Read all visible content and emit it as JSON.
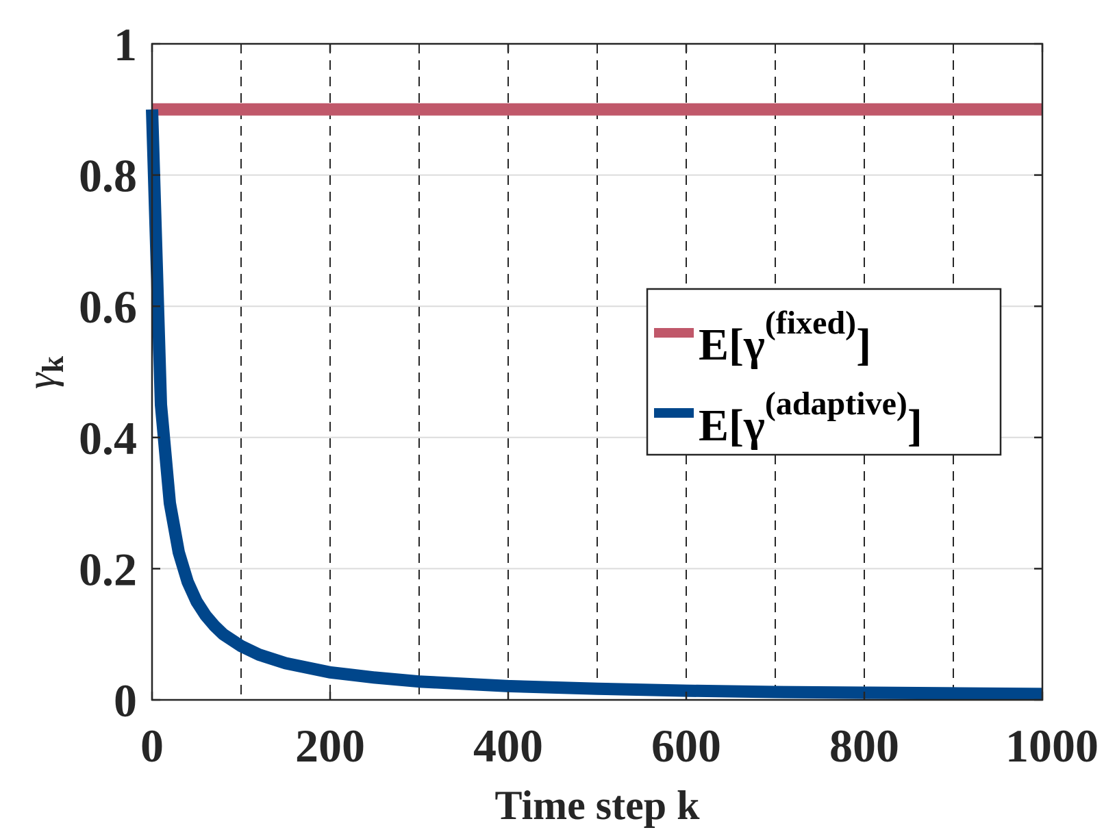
{
  "chart_data": {
    "type": "line",
    "xlabel": "Time step k",
    "ylabel": "γ",
    "ylabel_sub": "k",
    "xlim": [
      0,
      1000
    ],
    "ylim": [
      0,
      1
    ],
    "x_ticks": [
      0,
      200,
      400,
      600,
      800,
      1000
    ],
    "x_tick_labels": [
      "0",
      "200",
      "400",
      "600",
      "800",
      "1000"
    ],
    "y_ticks": [
      0,
      0.2,
      0.4,
      0.6,
      0.8,
      1
    ],
    "y_tick_labels": [
      "0",
      "0.2",
      "0.4",
      "0.6",
      "0.8",
      "1"
    ],
    "vertical_dashed_gridlines_x": [
      100,
      200,
      300,
      400,
      500,
      600,
      700,
      800,
      900
    ],
    "horizontal_grid": true,
    "legend_position": "right",
    "series": [
      {
        "name": "E[γ^(fixed)]",
        "legend_main": "E[γ",
        "legend_sup": "(fixed)",
        "legend_close": "]",
        "color": "#c0586a",
        "x": [
          0,
          1000
        ],
        "y": [
          0.9,
          0.9
        ]
      },
      {
        "name": "E[γ^(adaptive)]",
        "legend_main": "E[γ",
        "legend_sup": "(adaptive)",
        "legend_close": "]",
        "color": "#00468b",
        "x": [
          0,
          10,
          20,
          30,
          40,
          50,
          60,
          70,
          80,
          100,
          120,
          150,
          200,
          250,
          300,
          400,
          500,
          600,
          700,
          800,
          900,
          1000
        ],
        "y": [
          0.9,
          0.45,
          0.3,
          0.225,
          0.18,
          0.15,
          0.129,
          0.113,
          0.1,
          0.082,
          0.069,
          0.056,
          0.042,
          0.034,
          0.028,
          0.021,
          0.017,
          0.014,
          0.012,
          0.011,
          0.01,
          0.009
        ]
      }
    ]
  }
}
